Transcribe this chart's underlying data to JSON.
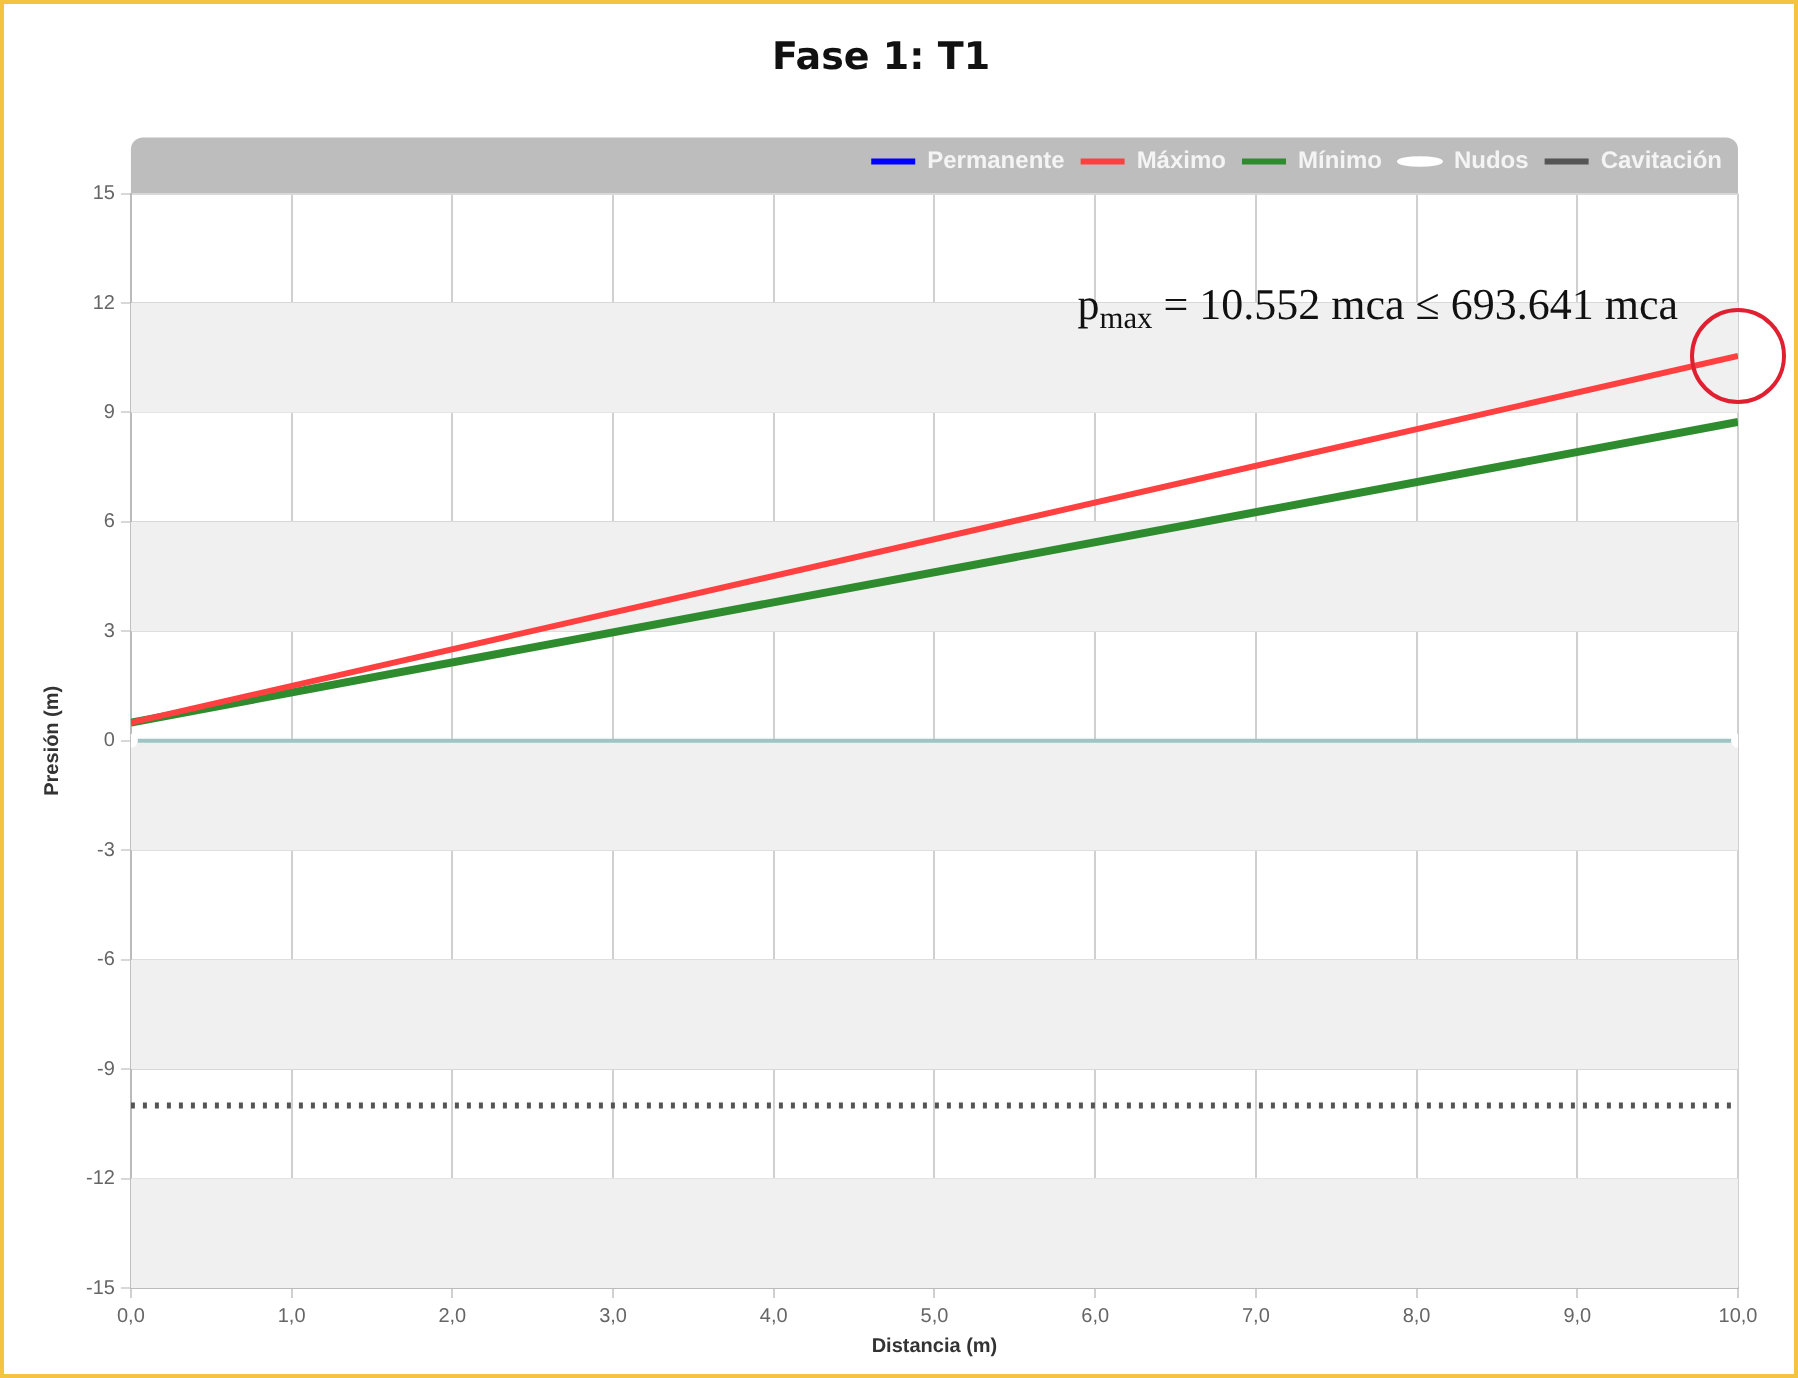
{
  "chart_data": {
    "type": "line",
    "title": "Fase 1: T1",
    "xlabel": "Distancia (m)",
    "ylabel": "Presión (m)",
    "x": [
      0,
      10
    ],
    "series": [
      {
        "name": "Permanente",
        "color": "#0000ff",
        "values": [
          null,
          null
        ]
      },
      {
        "name": "Máximo",
        "color": "#ff4040",
        "values": [
          0.5,
          10.552
        ]
      },
      {
        "name": "Mínimo",
        "color": "#2e8b2e",
        "values": [
          0.5,
          8.74
        ]
      },
      {
        "name": "Nudos",
        "type": "scatter",
        "color": "#ffffff",
        "marker": "circle",
        "values": [
          0,
          0
        ]
      },
      {
        "name": "Cavitación",
        "color": "#555555",
        "line_style": "dotted",
        "values": [
          -10,
          -10
        ]
      }
    ],
    "ref_lines": [
      {
        "axis": "y",
        "value": 0,
        "color": "#9fc4c4"
      }
    ],
    "annotations": [
      {
        "text": "p$_{max}$ = 10.552 mca ≤ 693.641 mca",
        "x": 10,
        "y": 10.552
      }
    ],
    "xlim": [
      0,
      10
    ],
    "xticks": [
      {
        "value": 0,
        "label": "0,0"
      },
      {
        "value": 1,
        "label": "1,0"
      },
      {
        "value": 2,
        "label": "2,0"
      },
      {
        "value": 3,
        "label": "3,0"
      },
      {
        "value": 4,
        "label": "4,0"
      },
      {
        "value": 5,
        "label": "5,0"
      },
      {
        "value": 6,
        "label": "6,0"
      },
      {
        "value": 7,
        "label": "7,0"
      },
      {
        "value": 8,
        "label": "8,0"
      },
      {
        "value": 9,
        "label": "9,0"
      },
      {
        "value": 10,
        "label": "10,0"
      }
    ],
    "ylim": [
      -15,
      15
    ],
    "yticks": [
      -15,
      -12,
      -9,
      -6,
      -3,
      0,
      3,
      6,
      9,
      12,
      15
    ],
    "grid": true,
    "legend": "top right"
  }
}
